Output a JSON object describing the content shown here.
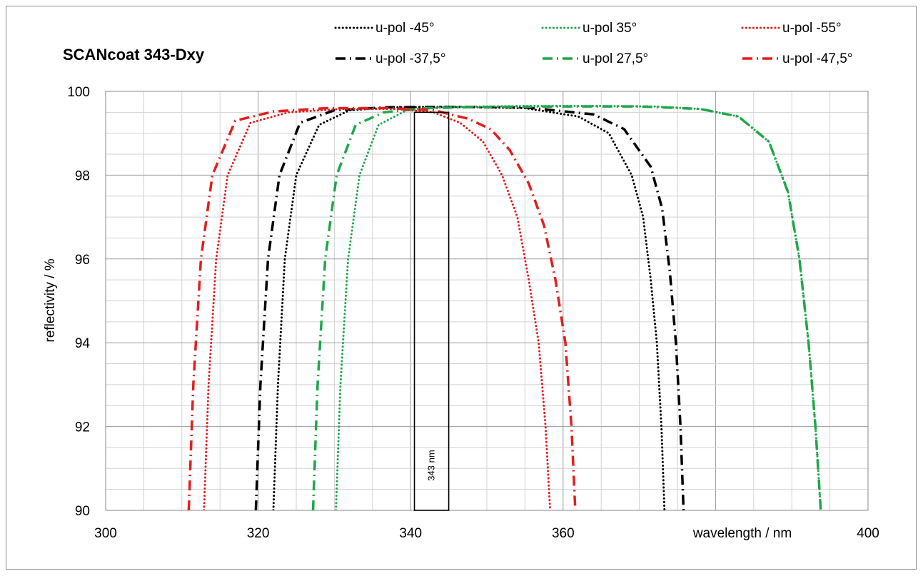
{
  "chart_data": {
    "type": "line",
    "title": "SCANcoat  343-Dxy",
    "xlabel": "wavelength / nm",
    "ylabel": "reflectivity / %",
    "xlim": [
      300,
      400
    ],
    "ylim": [
      90,
      100
    ],
    "x_ticks": [
      300,
      320,
      340,
      360,
      400
    ],
    "x_ticks_all": [
      300,
      320,
      340,
      360,
      380,
      400
    ],
    "x_tick_labels": [
      "300",
      "320",
      "340",
      "360",
      "400"
    ],
    "y_ticks": [
      90,
      92,
      94,
      96,
      98,
      100
    ],
    "y_tick_labels": [
      "90",
      "92",
      "94",
      "96",
      "98",
      "100"
    ],
    "grid": true,
    "legend_position": "top",
    "annotation": {
      "text": "343 nm",
      "rect_x": [
        340.5,
        345.0
      ],
      "rect_y_top": 99.5
    },
    "series": [
      {
        "name": "u-pol -45°",
        "color": "#000000",
        "style": "dotted",
        "x": [
          322,
          322.6,
          323.5,
          325,
          328,
          332,
          338,
          345,
          355,
          362,
          366,
          369,
          370.5,
          371.5,
          372.3,
          372.9,
          373.3
        ],
        "y": [
          90,
          93,
          96,
          98,
          99.2,
          99.55,
          99.62,
          99.63,
          99.6,
          99.4,
          99,
          98,
          97,
          95.5,
          94,
          92,
          90
        ]
      },
      {
        "name": "u-pol -37,5°",
        "color": "#000000",
        "style": "dashdot",
        "x": [
          319.7,
          320.3,
          321.3,
          322.8,
          325.5,
          330,
          337,
          345,
          355,
          364,
          368,
          371.5,
          373,
          374,
          374.8,
          375.4,
          375.8
        ],
        "y": [
          90,
          93,
          96,
          98,
          99.25,
          99.55,
          99.62,
          99.63,
          99.62,
          99.45,
          99.1,
          98.2,
          97.2,
          95.7,
          94,
          92,
          90
        ]
      },
      {
        "name": "u-pol 35°",
        "color": "#1ea84a",
        "style": "dotted",
        "x": [
          330.2,
          330.8,
          331.8,
          333.3,
          335.8,
          339.5,
          345,
          355,
          365,
          372,
          378,
          383,
          387,
          389.5,
          391,
          392.2,
          393.1,
          393.8
        ],
        "y": [
          90,
          93,
          96,
          98,
          99.2,
          99.55,
          99.63,
          99.65,
          99.65,
          99.64,
          99.58,
          99.4,
          98.8,
          97.6,
          96,
          94,
          92,
          90
        ]
      },
      {
        "name": "u-pol 27,5°",
        "color": "#1ea84a",
        "style": "dashdot",
        "x": [
          327.2,
          327.8,
          328.8,
          330.3,
          332.8,
          336.5,
          342,
          350,
          360,
          370,
          378,
          383,
          387,
          389.5,
          391,
          392.2,
          393.1,
          393.8
        ],
        "y": [
          90,
          93,
          96,
          98,
          99.2,
          99.5,
          99.6,
          99.63,
          99.64,
          99.64,
          99.58,
          99.4,
          98.8,
          97.6,
          96,
          94,
          92,
          90
        ]
      },
      {
        "name": "u-pol -55°",
        "color": "#e41e1e",
        "style": "dotted",
        "x": [
          312.9,
          313.5,
          314.5,
          316,
          319,
          324,
          331,
          338,
          343,
          346.5,
          349.5,
          352,
          354,
          355.5,
          356.8,
          357.7,
          358.3
        ],
        "y": [
          90,
          93,
          96,
          98,
          99.25,
          99.5,
          99.58,
          99.58,
          99.5,
          99.25,
          98.8,
          98,
          97,
          95.5,
          94,
          92,
          90
        ]
      },
      {
        "name": "u-pol -47,5°",
        "color": "#e41e1e",
        "style": "dashdot",
        "x": [
          310.9,
          311.5,
          312.5,
          314,
          317,
          322,
          329,
          337,
          343,
          347.5,
          350.5,
          353,
          355.5,
          357.5,
          359,
          360.3,
          361.1,
          361.6
        ],
        "y": [
          90,
          93,
          96,
          98,
          99.3,
          99.52,
          99.6,
          99.6,
          99.55,
          99.35,
          99.1,
          98.6,
          97.8,
          96.8,
          95.5,
          94,
          92,
          90
        ]
      }
    ]
  }
}
